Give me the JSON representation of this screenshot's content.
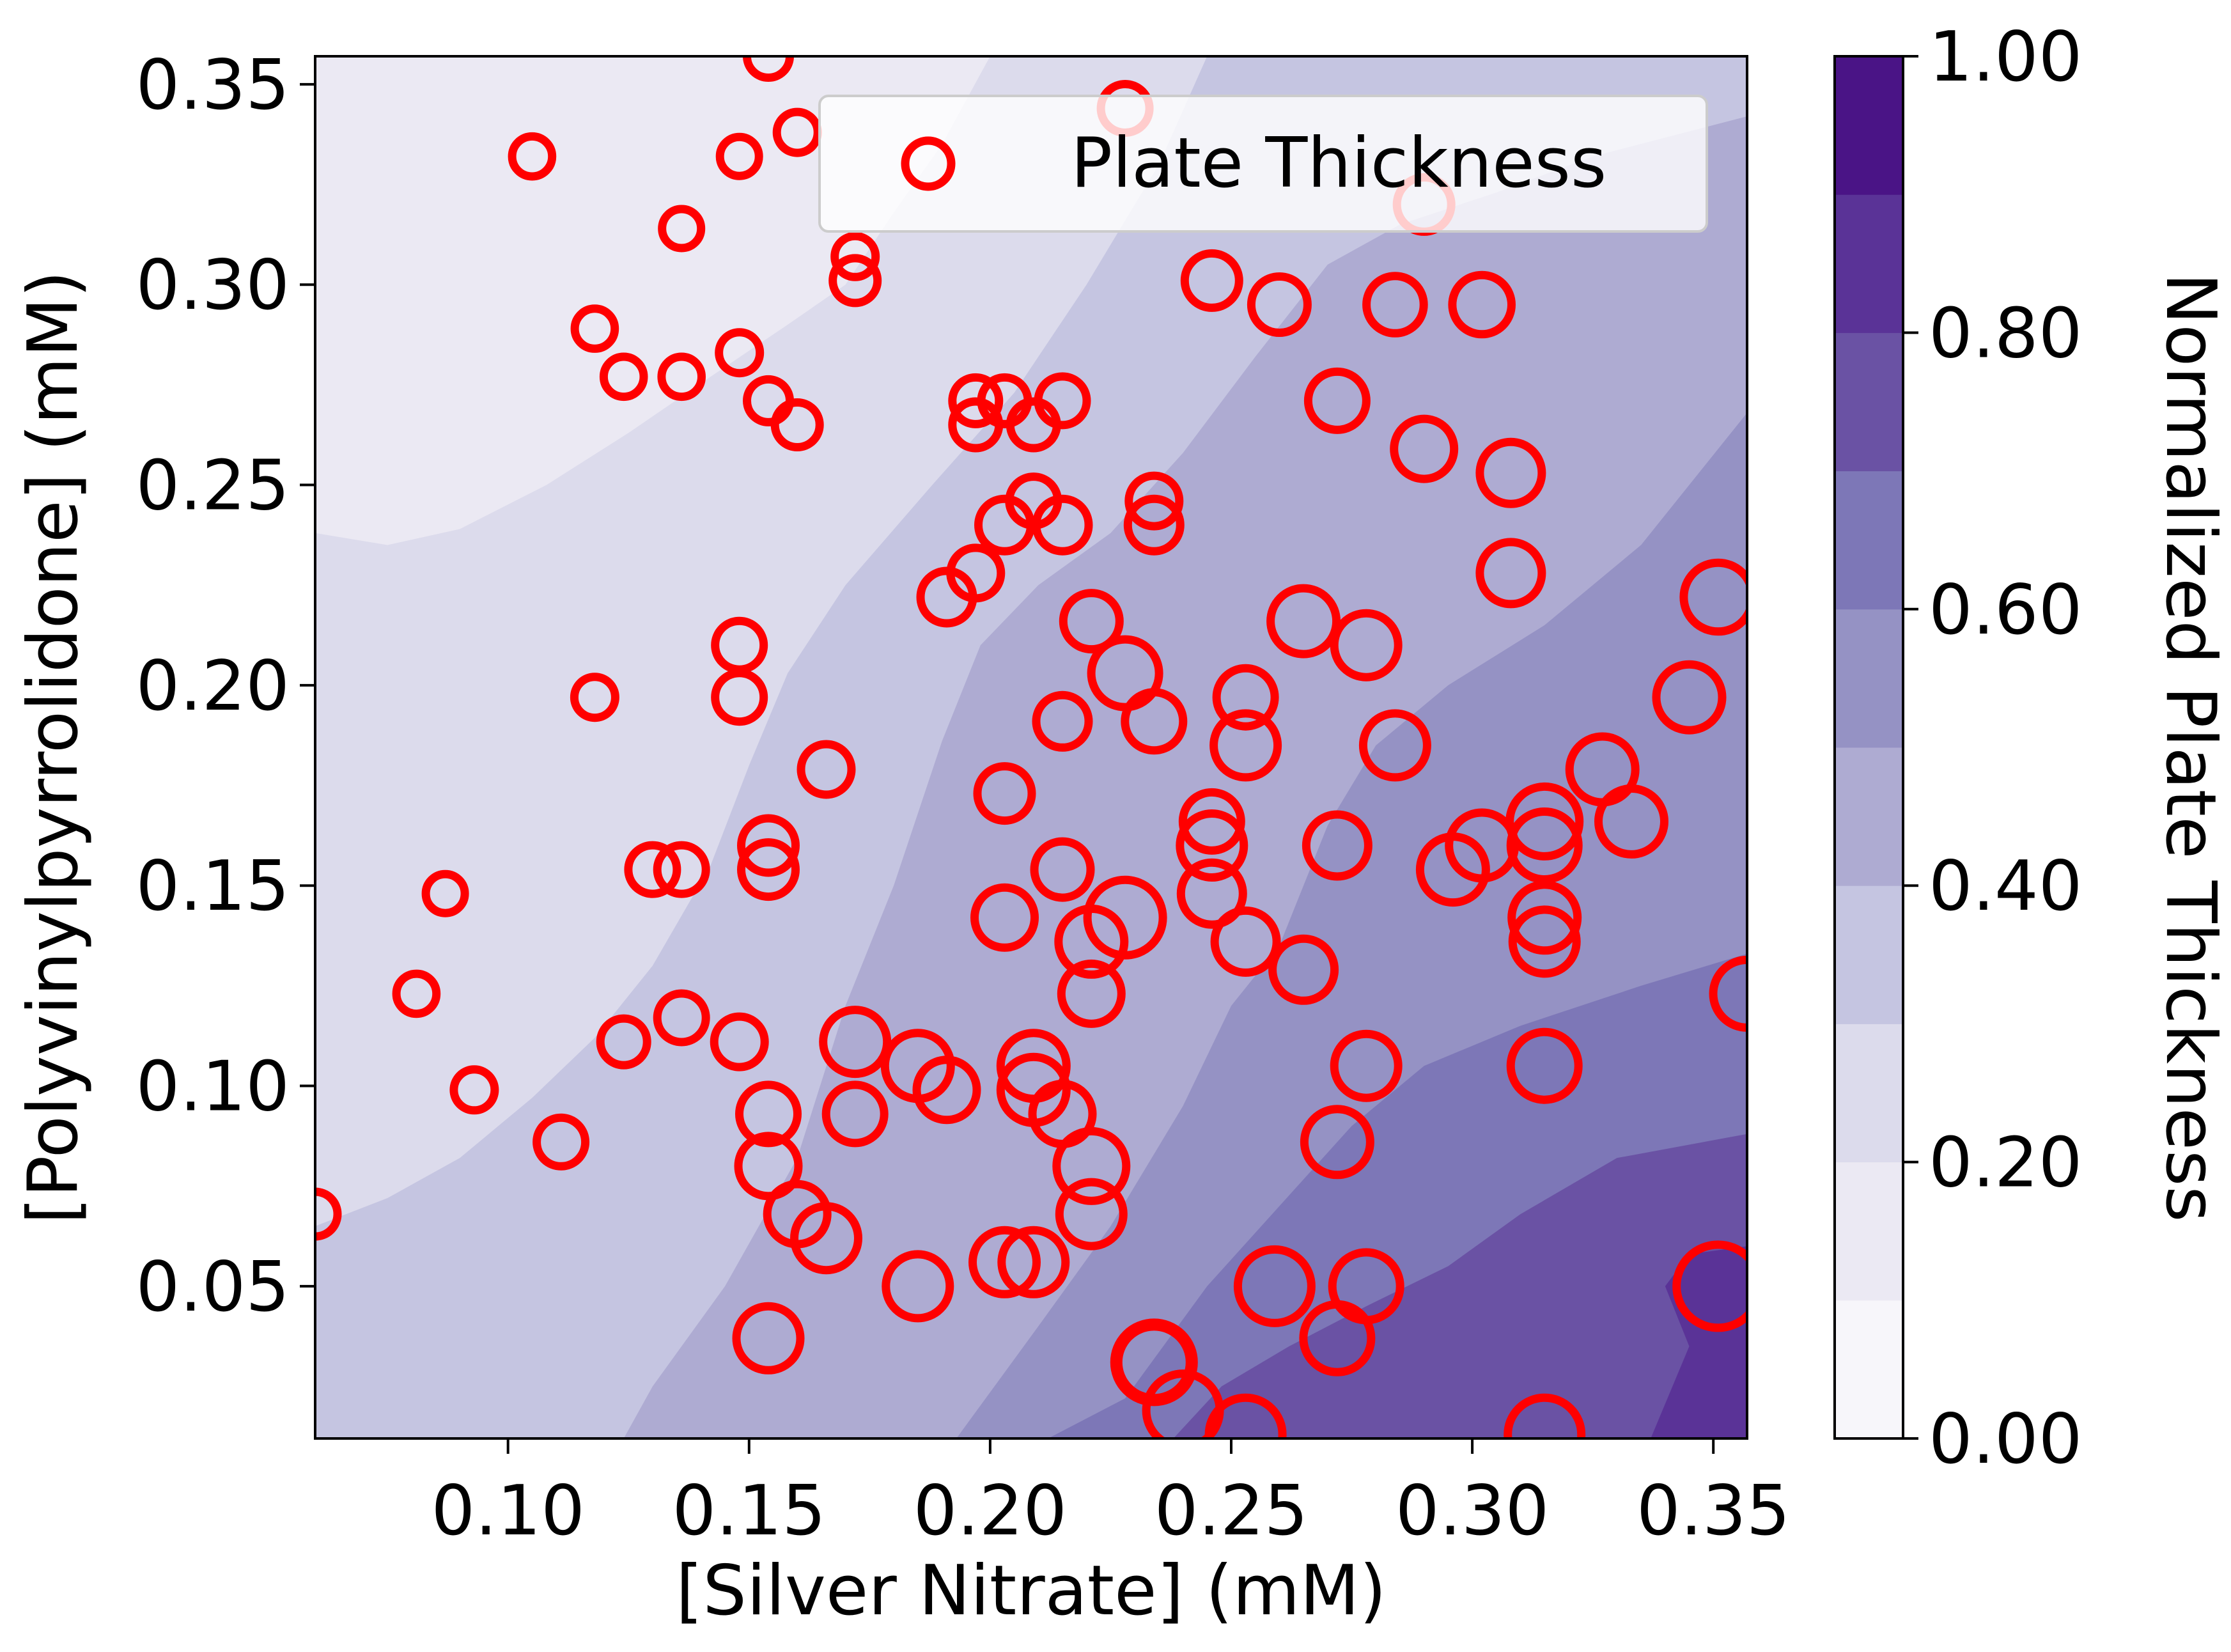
{
  "chart_data": {
    "type": "scatter",
    "subtype": "contour-with-scatter",
    "title": "",
    "xlabel": "[Silver Nitrate] (mM)",
    "ylabel": "[Polyvinylpyrrolidone] (mM)",
    "xlim": [
      0.06,
      0.357
    ],
    "ylim": [
      0.012,
      0.357
    ],
    "xticks": [
      "0.10",
      "0.15",
      "0.20",
      "0.25",
      "0.30",
      "0.35"
    ],
    "xtick_values": [
      0.1,
      0.15,
      0.2,
      0.25,
      0.3,
      0.35
    ],
    "yticks": [
      "0.05",
      "0.10",
      "0.15",
      "0.20",
      "0.25",
      "0.30",
      "0.35"
    ],
    "ytick_values": [
      0.05,
      0.1,
      0.15,
      0.2,
      0.25,
      0.3,
      0.35
    ],
    "grid": false,
    "legend": {
      "placement": "upper-right",
      "entries": [
        "Plate Thickness"
      ]
    },
    "colorbar": {
      "label": "Normalized Plate Thickness",
      "range": [
        0,
        1
      ],
      "ticks": [
        "0.00",
        "0.20",
        "0.40",
        "0.60",
        "0.80",
        "1.00"
      ],
      "tick_values": [
        0,
        0.2,
        0.4,
        0.6,
        0.8,
        1.0
      ],
      "levels": [
        0,
        0.1,
        0.2,
        0.3,
        0.4,
        0.5,
        0.6,
        0.7,
        0.8,
        0.9,
        1.0
      ],
      "colors": [
        "#f7f6fa",
        "#ebe9f3",
        "#dcdbec",
        "#c5c5e1",
        "#aeabd2",
        "#9592c4",
        "#7d77b7",
        "#6a52a4",
        "#5a3397",
        "#4a1486"
      ]
    },
    "contour_bands": [
      {
        "level": 0.1,
        "boundary": [
          [
            0.06,
            0.238
          ],
          [
            0.075,
            0.235
          ],
          [
            0.09,
            0.239
          ],
          [
            0.108,
            0.25
          ],
          [
            0.125,
            0.263
          ],
          [
            0.142,
            0.277
          ],
          [
            0.158,
            0.29
          ],
          [
            0.17,
            0.3
          ],
          [
            0.18,
            0.318
          ],
          [
            0.19,
            0.335
          ],
          [
            0.2,
            0.357
          ]
        ]
      },
      {
        "level": 0.2,
        "boundary": [
          [
            0.06,
            0.065
          ],
          [
            0.075,
            0.072
          ],
          [
            0.09,
            0.082
          ],
          [
            0.105,
            0.097
          ],
          [
            0.118,
            0.112
          ],
          [
            0.13,
            0.13
          ],
          [
            0.142,
            0.155
          ],
          [
            0.15,
            0.18
          ],
          [
            0.158,
            0.203
          ],
          [
            0.17,
            0.225
          ],
          [
            0.188,
            0.25
          ],
          [
            0.205,
            0.273
          ],
          [
            0.22,
            0.3
          ],
          [
            0.235,
            0.33
          ],
          [
            0.245,
            0.357
          ]
        ]
      },
      {
        "level": 0.3,
        "boundary": [
          [
            0.124,
            0.012
          ],
          [
            0.13,
            0.025
          ],
          [
            0.145,
            0.05
          ],
          [
            0.16,
            0.082
          ],
          [
            0.17,
            0.12
          ],
          [
            0.18,
            0.15
          ],
          [
            0.19,
            0.186
          ],
          [
            0.198,
            0.21
          ],
          [
            0.21,
            0.225
          ],
          [
            0.225,
            0.238
          ],
          [
            0.24,
            0.258
          ],
          [
            0.255,
            0.282
          ],
          [
            0.27,
            0.305
          ],
          [
            0.285,
            0.315
          ],
          [
            0.305,
            0.323
          ],
          [
            0.325,
            0.332
          ],
          [
            0.357,
            0.342
          ]
        ]
      },
      {
        "level": 0.4,
        "boundary": [
          [
            0.193,
            0.012
          ],
          [
            0.21,
            0.04
          ],
          [
            0.225,
            0.065
          ],
          [
            0.24,
            0.095
          ],
          [
            0.25,
            0.12
          ],
          [
            0.26,
            0.135
          ],
          [
            0.27,
            0.165
          ],
          [
            0.28,
            0.185
          ],
          [
            0.295,
            0.2
          ],
          [
            0.315,
            0.215
          ],
          [
            0.335,
            0.235
          ],
          [
            0.357,
            0.268
          ]
        ]
      },
      {
        "level": 0.5,
        "boundary": [
          [
            0.212,
            0.012
          ],
          [
            0.228,
            0.022
          ],
          [
            0.245,
            0.05
          ],
          [
            0.26,
            0.07
          ],
          [
            0.275,
            0.09
          ],
          [
            0.29,
            0.105
          ],
          [
            0.31,
            0.115
          ],
          [
            0.335,
            0.125
          ],
          [
            0.357,
            0.133
          ]
        ]
      },
      {
        "level": 0.6,
        "boundary": [
          [
            0.238,
            0.012
          ],
          [
            0.248,
            0.025
          ],
          [
            0.262,
            0.035
          ],
          [
            0.278,
            0.045
          ],
          [
            0.295,
            0.055
          ],
          [
            0.31,
            0.068
          ],
          [
            0.33,
            0.082
          ],
          [
            0.357,
            0.088
          ]
        ]
      },
      {
        "level": 0.7,
        "boundary": [
          [
            0.337,
            0.012
          ],
          [
            0.345,
            0.035
          ],
          [
            0.34,
            0.05
          ],
          [
            0.345,
            0.058
          ],
          [
            0.357,
            0.06
          ]
        ]
      }
    ],
    "series": [
      {
        "name": "Plate Thickness",
        "marker": "open-circle",
        "color": "#ff0000",
        "points": [
          {
            "x": 0.154,
            "y": 0.357,
            "v": 0.18
          },
          {
            "x": 0.105,
            "y": 0.332,
            "v": 0.15
          },
          {
            "x": 0.148,
            "y": 0.332,
            "v": 0.14
          },
          {
            "x": 0.16,
            "y": 0.338,
            "v": 0.16
          },
          {
            "x": 0.136,
            "y": 0.314,
            "v": 0.14
          },
          {
            "x": 0.172,
            "y": 0.307,
            "v": 0.16
          },
          {
            "x": 0.172,
            "y": 0.301,
            "v": 0.2
          },
          {
            "x": 0.228,
            "y": 0.344,
            "v": 0.24
          },
          {
            "x": 0.29,
            "y": 0.32,
            "v": 0.3
          },
          {
            "x": 0.246,
            "y": 0.301,
            "v": 0.3
          },
          {
            "x": 0.26,
            "y": 0.295,
            "v": 0.32
          },
          {
            "x": 0.284,
            "y": 0.295,
            "v": 0.33
          },
          {
            "x": 0.302,
            "y": 0.295,
            "v": 0.35
          },
          {
            "x": 0.118,
            "y": 0.289,
            "v": 0.15
          },
          {
            "x": 0.124,
            "y": 0.277,
            "v": 0.15
          },
          {
            "x": 0.136,
            "y": 0.277,
            "v": 0.15
          },
          {
            "x": 0.148,
            "y": 0.283,
            "v": 0.16
          },
          {
            "x": 0.154,
            "y": 0.271,
            "v": 0.18
          },
          {
            "x": 0.16,
            "y": 0.265,
            "v": 0.2
          },
          {
            "x": 0.197,
            "y": 0.271,
            "v": 0.22
          },
          {
            "x": 0.203,
            "y": 0.271,
            "v": 0.22
          },
          {
            "x": 0.215,
            "y": 0.271,
            "v": 0.24
          },
          {
            "x": 0.197,
            "y": 0.265,
            "v": 0.22
          },
          {
            "x": 0.209,
            "y": 0.265,
            "v": 0.22
          },
          {
            "x": 0.272,
            "y": 0.271,
            "v": 0.34
          },
          {
            "x": 0.29,
            "y": 0.259,
            "v": 0.36
          },
          {
            "x": 0.308,
            "y": 0.253,
            "v": 0.38
          },
          {
            "x": 0.209,
            "y": 0.246,
            "v": 0.24
          },
          {
            "x": 0.234,
            "y": 0.246,
            "v": 0.26
          },
          {
            "x": 0.203,
            "y": 0.24,
            "v": 0.28
          },
          {
            "x": 0.215,
            "y": 0.24,
            "v": 0.28
          },
          {
            "x": 0.234,
            "y": 0.24,
            "v": 0.28
          },
          {
            "x": 0.197,
            "y": 0.228,
            "v": 0.26
          },
          {
            "x": 0.191,
            "y": 0.222,
            "v": 0.28
          },
          {
            "x": 0.308,
            "y": 0.228,
            "v": 0.38
          },
          {
            "x": 0.351,
            "y": 0.222,
            "v": 0.45
          },
          {
            "x": 0.221,
            "y": 0.216,
            "v": 0.32
          },
          {
            "x": 0.265,
            "y": 0.216,
            "v": 0.42
          },
          {
            "x": 0.278,
            "y": 0.21,
            "v": 0.4
          },
          {
            "x": 0.148,
            "y": 0.21,
            "v": 0.24
          },
          {
            "x": 0.228,
            "y": 0.203,
            "v": 0.44
          },
          {
            "x": 0.118,
            "y": 0.197,
            "v": 0.16
          },
          {
            "x": 0.148,
            "y": 0.197,
            "v": 0.24
          },
          {
            "x": 0.253,
            "y": 0.197,
            "v": 0.34
          },
          {
            "x": 0.345,
            "y": 0.197,
            "v": 0.42
          },
          {
            "x": 0.215,
            "y": 0.191,
            "v": 0.28
          },
          {
            "x": 0.234,
            "y": 0.191,
            "v": 0.34
          },
          {
            "x": 0.253,
            "y": 0.185,
            "v": 0.4
          },
          {
            "x": 0.284,
            "y": 0.185,
            "v": 0.4
          },
          {
            "x": 0.166,
            "y": 0.179,
            "v": 0.26
          },
          {
            "x": 0.327,
            "y": 0.179,
            "v": 0.42
          },
          {
            "x": 0.203,
            "y": 0.173,
            "v": 0.3
          },
          {
            "x": 0.246,
            "y": 0.166,
            "v": 0.34
          },
          {
            "x": 0.315,
            "y": 0.166,
            "v": 0.46
          },
          {
            "x": 0.333,
            "y": 0.166,
            "v": 0.42
          },
          {
            "x": 0.154,
            "y": 0.16,
            "v": 0.3
          },
          {
            "x": 0.246,
            "y": 0.16,
            "v": 0.4
          },
          {
            "x": 0.272,
            "y": 0.16,
            "v": 0.38
          },
          {
            "x": 0.302,
            "y": 0.16,
            "v": 0.42
          },
          {
            "x": 0.315,
            "y": 0.16,
            "v": 0.44
          },
          {
            "x": 0.13,
            "y": 0.154,
            "v": 0.24
          },
          {
            "x": 0.136,
            "y": 0.154,
            "v": 0.24
          },
          {
            "x": 0.154,
            "y": 0.154,
            "v": 0.3
          },
          {
            "x": 0.215,
            "y": 0.154,
            "v": 0.32
          },
          {
            "x": 0.296,
            "y": 0.154,
            "v": 0.42
          },
          {
            "x": 0.087,
            "y": 0.148,
            "v": 0.14
          },
          {
            "x": 0.246,
            "y": 0.148,
            "v": 0.38
          },
          {
            "x": 0.203,
            "y": 0.142,
            "v": 0.36
          },
          {
            "x": 0.228,
            "y": 0.142,
            "v": 0.52
          },
          {
            "x": 0.315,
            "y": 0.142,
            "v": 0.42
          },
          {
            "x": 0.221,
            "y": 0.136,
            "v": 0.42
          },
          {
            "x": 0.253,
            "y": 0.136,
            "v": 0.38
          },
          {
            "x": 0.315,
            "y": 0.136,
            "v": 0.4
          },
          {
            "x": 0.265,
            "y": 0.129,
            "v": 0.38
          },
          {
            "x": 0.081,
            "y": 0.123,
            "v": 0.15
          },
          {
            "x": 0.221,
            "y": 0.123,
            "v": 0.36
          },
          {
            "x": 0.357,
            "y": 0.123,
            "v": 0.44
          },
          {
            "x": 0.136,
            "y": 0.117,
            "v": 0.24
          },
          {
            "x": 0.124,
            "y": 0.111,
            "v": 0.22
          },
          {
            "x": 0.148,
            "y": 0.111,
            "v": 0.26
          },
          {
            "x": 0.172,
            "y": 0.111,
            "v": 0.4
          },
          {
            "x": 0.185,
            "y": 0.105,
            "v": 0.42
          },
          {
            "x": 0.209,
            "y": 0.105,
            "v": 0.42
          },
          {
            "x": 0.278,
            "y": 0.105,
            "v": 0.4
          },
          {
            "x": 0.315,
            "y": 0.105,
            "v": 0.44
          },
          {
            "x": 0.093,
            "y": 0.099,
            "v": 0.16
          },
          {
            "x": 0.191,
            "y": 0.099,
            "v": 0.36
          },
          {
            "x": 0.209,
            "y": 0.099,
            "v": 0.42
          },
          {
            "x": 0.154,
            "y": 0.093,
            "v": 0.34
          },
          {
            "x": 0.172,
            "y": 0.093,
            "v": 0.34
          },
          {
            "x": 0.215,
            "y": 0.093,
            "v": 0.36
          },
          {
            "x": 0.111,
            "y": 0.086,
            "v": 0.24
          },
          {
            "x": 0.272,
            "y": 0.086,
            "v": 0.42
          },
          {
            "x": 0.154,
            "y": 0.08,
            "v": 0.36
          },
          {
            "x": 0.221,
            "y": 0.08,
            "v": 0.46
          },
          {
            "x": 0.06,
            "y": 0.068,
            "v": 0.2
          },
          {
            "x": 0.16,
            "y": 0.068,
            "v": 0.36
          },
          {
            "x": 0.221,
            "y": 0.068,
            "v": 0.4
          },
          {
            "x": 0.166,
            "y": 0.062,
            "v": 0.4
          },
          {
            "x": 0.203,
            "y": 0.056,
            "v": 0.4
          },
          {
            "x": 0.209,
            "y": 0.056,
            "v": 0.4
          },
          {
            "x": 0.185,
            "y": 0.05,
            "v": 0.4
          },
          {
            "x": 0.259,
            "y": 0.05,
            "v": 0.5
          },
          {
            "x": 0.278,
            "y": 0.05,
            "v": 0.44
          },
          {
            "x": 0.351,
            "y": 0.05,
            "v": 0.6
          },
          {
            "x": 0.154,
            "y": 0.037,
            "v": 0.4
          },
          {
            "x": 0.272,
            "y": 0.037,
            "v": 0.44
          },
          {
            "x": 0.234,
            "y": 0.031,
            "v": 0.56
          },
          {
            "x": 0.234,
            "y": 0.031,
            "v": 0.48
          },
          {
            "x": 0.24,
            "y": 0.019,
            "v": 0.5
          },
          {
            "x": 0.253,
            "y": 0.013,
            "v": 0.5
          },
          {
            "x": 0.315,
            "y": 0.013,
            "v": 0.5
          }
        ]
      }
    ]
  }
}
